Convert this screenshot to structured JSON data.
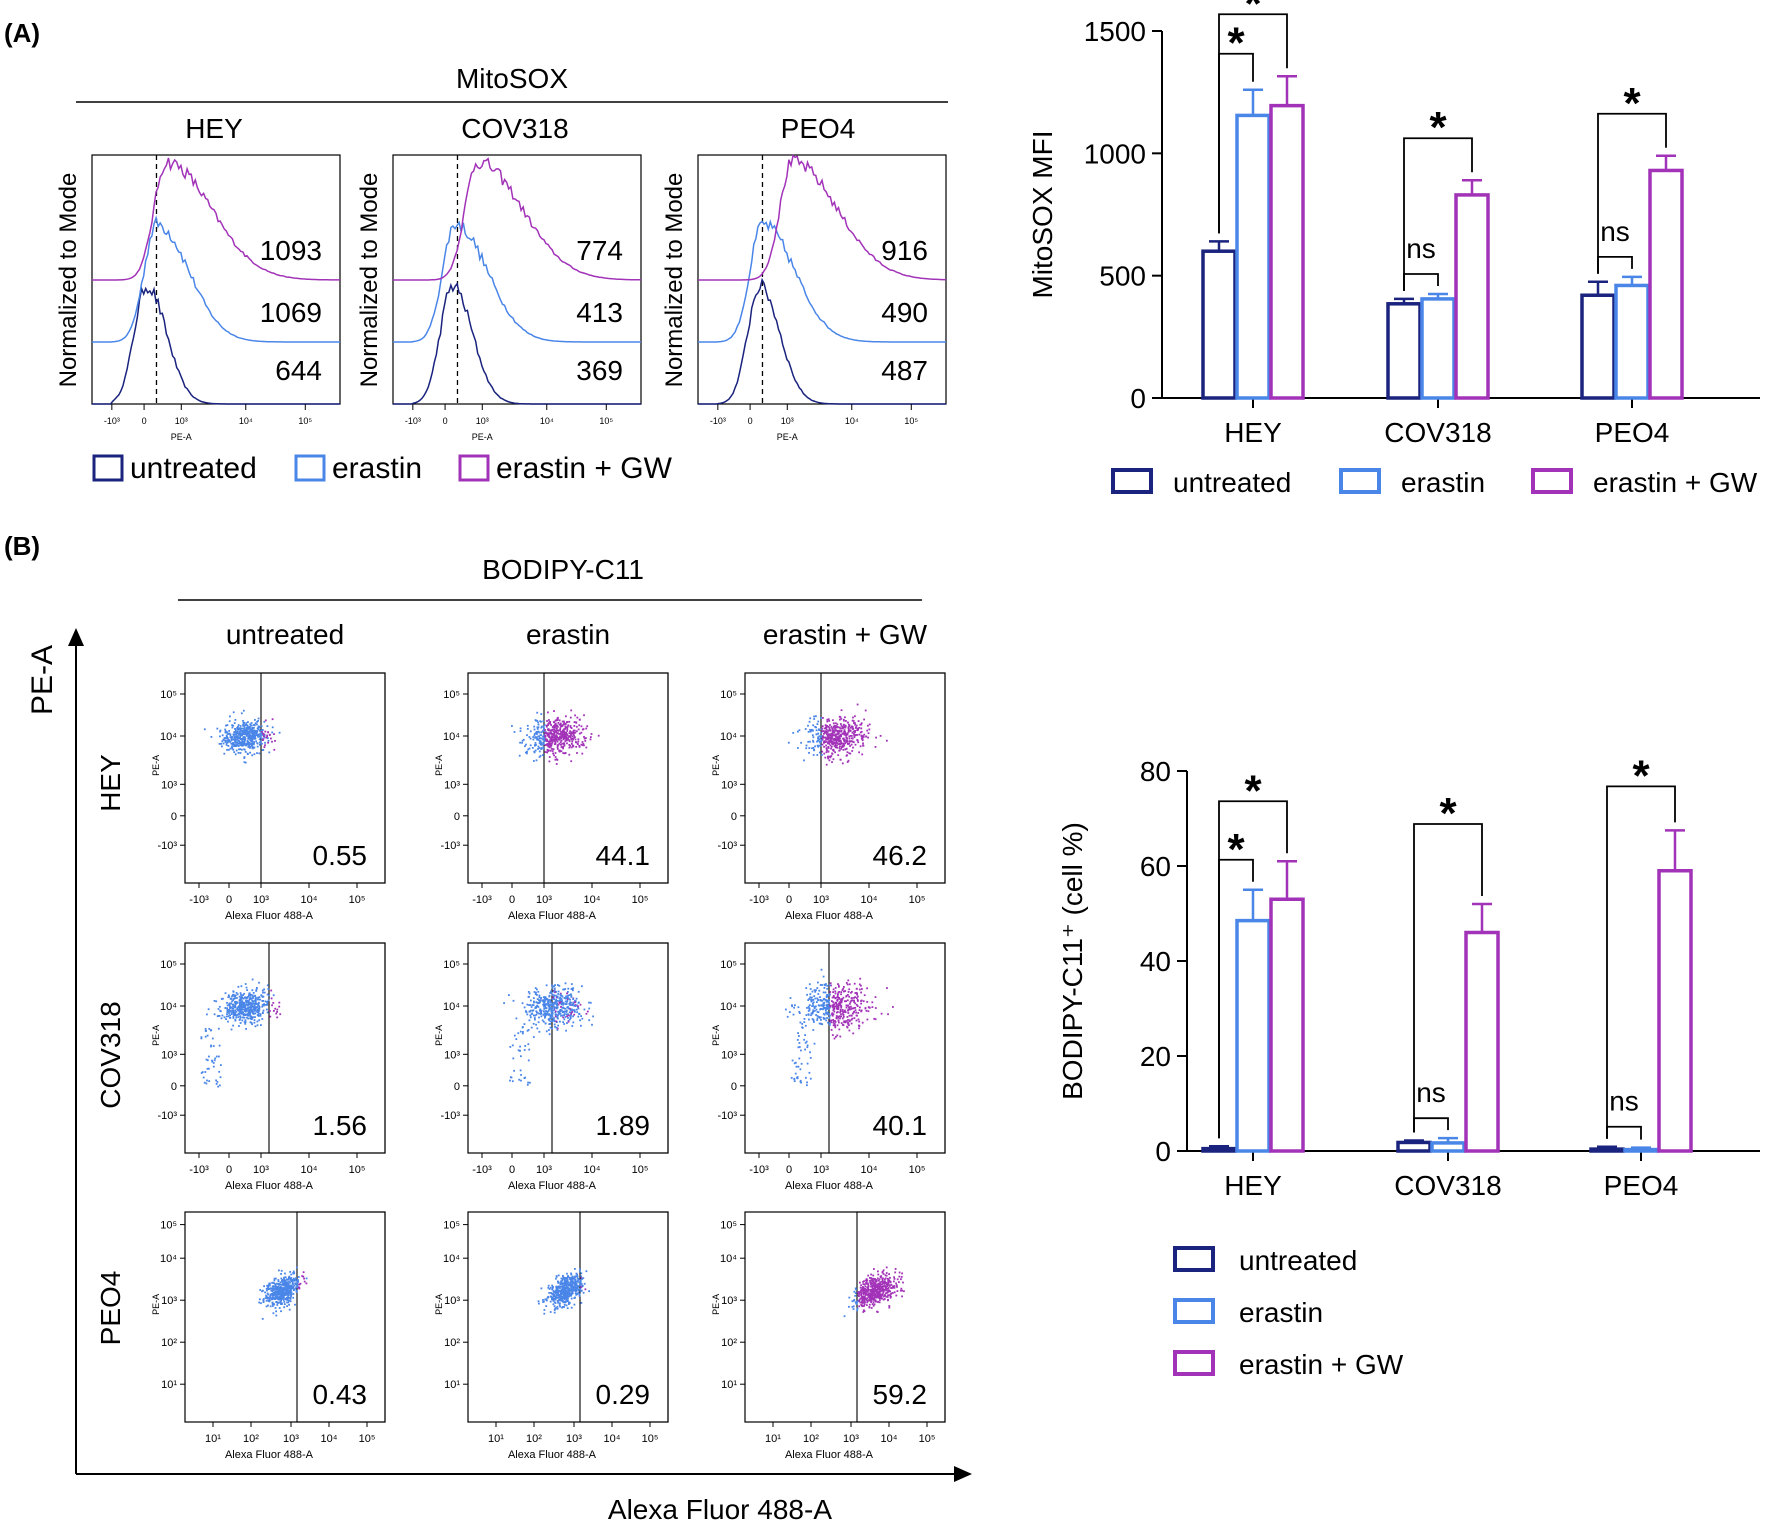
{
  "colors": {
    "untreated": "#1a237e",
    "erastin": "#4a86e8",
    "gw": "#a233b8",
    "black": "#000000"
  },
  "panelA": {
    "label": "(A)",
    "title": "MitoSOX",
    "histograms": [
      {
        "cell": "HEY",
        "values": [
          "1093",
          "1069",
          "644"
        ]
      },
      {
        "cell": "COV318",
        "values": [
          "774",
          "413",
          "369"
        ]
      },
      {
        "cell": "PEO4",
        "values": [
          "916",
          "490",
          "487"
        ]
      }
    ],
    "hist_ylabel": "Normalized to Mode",
    "hist_xlabel": "PE-A",
    "hist_xticks": [
      "-10³",
      "0",
      "10³",
      "10⁴",
      "10⁵"
    ],
    "legend": [
      "untreated",
      "erastin",
      "erastin + GW"
    ]
  },
  "panelB": {
    "label": "(B)",
    "title": "BODIPY-C11",
    "columns": [
      "untreated",
      "erastin",
      "erastin + GW"
    ],
    "rows": [
      "HEY",
      "COV318",
      "PEO4"
    ],
    "pcts": [
      [
        "0.55",
        "44.1",
        "46.2"
      ],
      [
        "1.56",
        "1.89",
        "40.1"
      ],
      [
        "0.43",
        "0.29",
        "59.2"
      ]
    ],
    "dot_ylabel": "PE-A",
    "dot_xlabel": "Alexa Fluor 488-A",
    "axis_y_big": "PE-A",
    "axis_x_big": "Alexa Fluor 488-A",
    "yticks_lin": [
      "10⁵",
      "10⁴",
      "10³",
      "0",
      "-10³"
    ],
    "yticks_log": [
      "10⁵",
      "10⁴",
      "10³",
      "10²",
      "10¹"
    ],
    "xticks_lin": [
      "-10³",
      "0",
      "10³",
      "10⁴",
      "10⁵"
    ],
    "xticks_log": [
      "10¹",
      "10²",
      "10³",
      "10⁴",
      "10⁵"
    ]
  },
  "chart_data": [
    {
      "type": "bar",
      "title": "",
      "xlabel": "",
      "ylabel": "MitoSOX MFI",
      "ylim": [
        0,
        1500
      ],
      "yticks": [
        0,
        500,
        1000,
        1500
      ],
      "categories": [
        "HEY",
        "COV318",
        "PEO4"
      ],
      "series": [
        {
          "name": "untreated",
          "values": [
            600,
            385,
            420
          ],
          "errors": [
            40,
            20,
            55
          ]
        },
        {
          "name": "erastin",
          "values": [
            1155,
            405,
            460
          ],
          "errors": [
            105,
            20,
            35
          ]
        },
        {
          "name": "erastin + GW",
          "values": [
            1195,
            830,
            930
          ],
          "errors": [
            120,
            60,
            60
          ]
        }
      ],
      "significance": [
        {
          "group": 0,
          "from": 0,
          "to": 1,
          "label": "*"
        },
        {
          "group": 0,
          "from": 0,
          "to": 2,
          "label": "*"
        },
        {
          "group": 1,
          "from": 0,
          "to": 1,
          "label": "ns"
        },
        {
          "group": 1,
          "from": 0,
          "to": 2,
          "label": "*"
        },
        {
          "group": 2,
          "from": 0,
          "to": 1,
          "label": "ns"
        },
        {
          "group": 2,
          "from": 0,
          "to": 2,
          "label": "*"
        }
      ],
      "legend": "bottom"
    },
    {
      "type": "bar",
      "title": "",
      "xlabel": "",
      "ylabel": "BODIPY-C11⁺ (cell %)",
      "ylim": [
        0,
        80
      ],
      "yticks": [
        0,
        20,
        40,
        60,
        80
      ],
      "categories": [
        "HEY",
        "COV318",
        "PEO4"
      ],
      "series": [
        {
          "name": "untreated",
          "values": [
            0.5,
            1.8,
            0.4
          ],
          "errors": [
            0.5,
            0.4,
            0.5
          ]
        },
        {
          "name": "erastin",
          "values": [
            48.5,
            1.7,
            0.3
          ],
          "errors": [
            6.5,
            1.0,
            0.4
          ]
        },
        {
          "name": "erastin + GW",
          "values": [
            53,
            46,
            59
          ],
          "errors": [
            8,
            6,
            8.5
          ]
        }
      ],
      "significance": [
        {
          "group": 0,
          "from": 0,
          "to": 1,
          "label": "*"
        },
        {
          "group": 0,
          "from": 0,
          "to": 2,
          "label": "*"
        },
        {
          "group": 1,
          "from": 0,
          "to": 1,
          "label": "ns"
        },
        {
          "group": 1,
          "from": 0,
          "to": 2,
          "label": "*"
        },
        {
          "group": 2,
          "from": 0,
          "to": 1,
          "label": "ns"
        },
        {
          "group": 2,
          "from": 0,
          "to": 2,
          "label": "*"
        }
      ],
      "legend": "bottom"
    }
  ]
}
